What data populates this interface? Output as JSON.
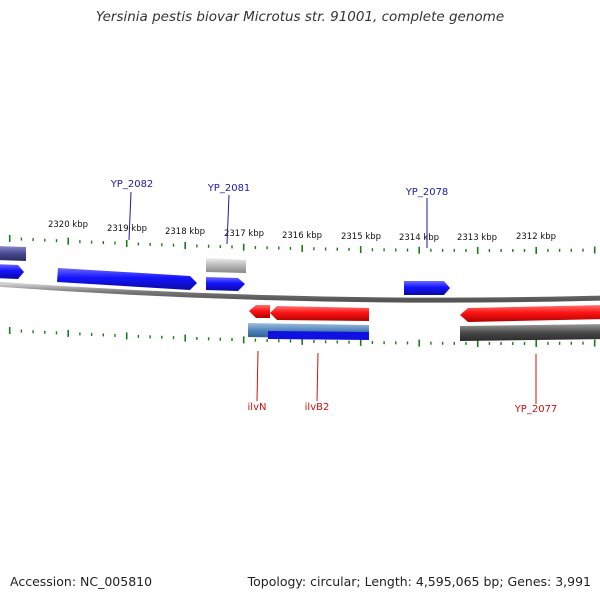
{
  "title": "Yersinia pestis biovar Microtus str. 91001, complete genome",
  "footer": {
    "accession": "Accession: NC_005810",
    "summary": "Topology: circular; Length: 4,595,065 bp; Genes: 3,991"
  },
  "colors": {
    "forward_gene": "#1a1aff",
    "reverse_gene": "#ff1a1a",
    "pseudo_gene": "#b8b8b8",
    "rna_gene": "#555555",
    "backbone": "#808080",
    "tick": "#1a7a1a",
    "forward_label": "#1a1aaa",
    "reverse_label": "#cc1111"
  },
  "scale_labels": [
    "2320 kbp",
    "2319 kbp",
    "2318 kbp",
    "2317 kbp",
    "2316 kbp",
    "2315 kbp",
    "2314 kbp",
    "2313 kbp",
    "2312 kbp"
  ],
  "labels": {
    "yp2082": "YP_2082",
    "yp2081": "YP_2081",
    "yp2078": "YP_2078",
    "ilvN": "ilvN",
    "ilvB2": "ilvB2",
    "yp2077": "YP_2077"
  }
}
